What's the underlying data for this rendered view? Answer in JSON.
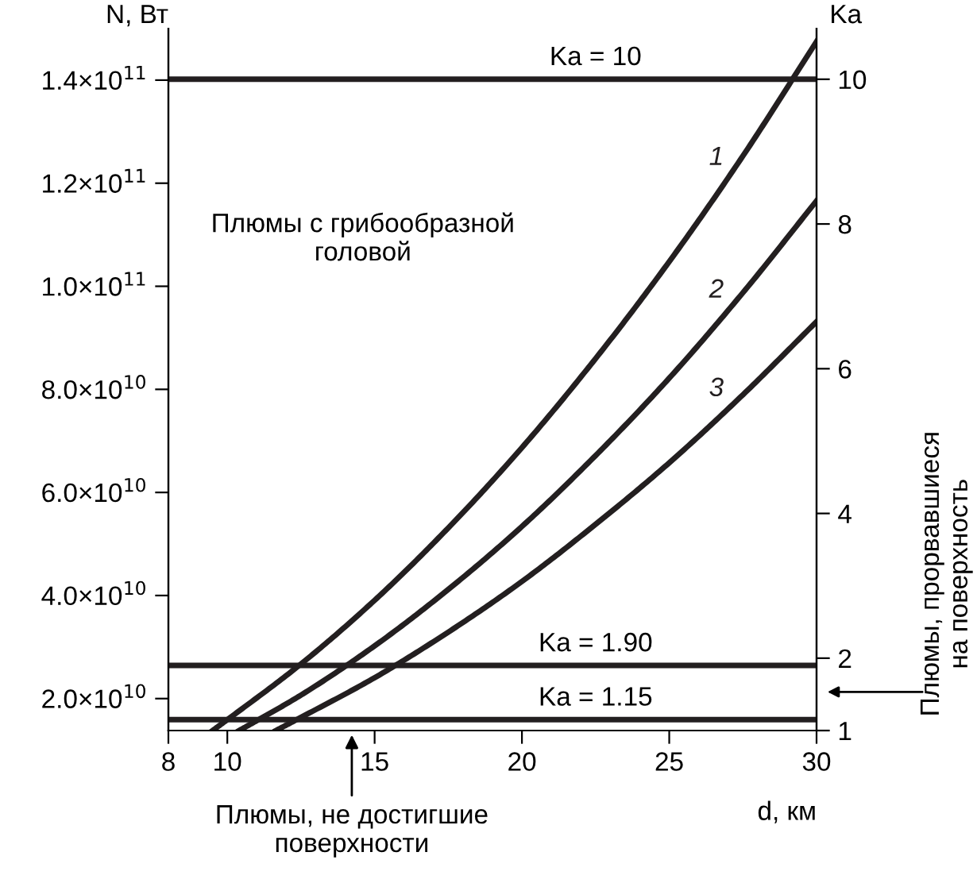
{
  "chart_data": {
    "type": "line",
    "xlabel": "d, км",
    "ylabel": "N, Вт",
    "y2label": "Ka",
    "xlim": [
      8,
      30
    ],
    "xticks": [
      8,
      10,
      15,
      20,
      25,
      30
    ],
    "ylim": [
      13800000000,
      150000000000
    ],
    "yticks": [
      {
        "value": 20000000000,
        "label": "2.0×10$^{10}$"
      },
      {
        "value": 40000000000,
        "label": "4.0×10$^{10}$"
      },
      {
        "value": 60000000000,
        "label": "6.0×10$^{10}$"
      },
      {
        "value": 80000000000,
        "label": "8.0×10$^{10}$"
      },
      {
        "value": 100000000000,
        "label": "1.0×10$^{11}$"
      },
      {
        "value": 120000000000,
        "label": "1.2×10$^{11}$"
      },
      {
        "value": 140000000000,
        "label": "1.4×10$^{11}$"
      }
    ],
    "y2lim": [
      1,
      10.7
    ],
    "y2ticks": [
      1,
      2,
      4,
      6,
      8,
      10
    ],
    "series": [
      {
        "name": "1",
        "color": "#231f20",
        "axis": "y2",
        "x": [
          9.5,
          10,
          12.5,
          15,
          17.5,
          20,
          22.5,
          25,
          27.5,
          30
        ],
        "values": [
          1.0,
          1.15,
          1.92,
          2.8,
          3.8,
          4.91,
          6.14,
          7.48,
          8.94,
          10.52
        ]
      },
      {
        "name": "2",
        "color": "#231f20",
        "axis": "y2",
        "x": [
          10.4,
          11.06,
          12.5,
          15,
          17.5,
          20,
          22.5,
          25,
          27.5,
          30
        ],
        "values": [
          1.0,
          1.15,
          1.49,
          2.17,
          2.95,
          3.82,
          4.8,
          5.87,
          7.05,
          8.32
        ]
      },
      {
        "name": "3",
        "color": "#231f20",
        "axis": "y2",
        "x": [
          11.65,
          12.35,
          15,
          17.5,
          20,
          22.5,
          25,
          27.5,
          30
        ],
        "values": [
          1.0,
          1.15,
          1.73,
          2.36,
          3.06,
          3.85,
          4.7,
          5.64,
          6.65
        ]
      }
    ],
    "ref_lines": [
      {
        "axis": "y2",
        "value": 10,
        "label": "Ka = 10",
        "color": "#231f20"
      },
      {
        "axis": "y2",
        "value": 1.9,
        "label": "Ka = 1.90",
        "color": "#231f20"
      },
      {
        "axis": "y2",
        "value": 1.15,
        "label": "Ka = 1.15",
        "color": "#231f20"
      }
    ],
    "annotations": [
      "Плюмы с грибообразной\nголовой",
      "Плюмы, не достигшие\nповерхности",
      "Плюмы, прорвавшиеся\nна поверхность"
    ],
    "grid": false,
    "legend": false,
    "marker": "none",
    "line_style": "solid"
  }
}
